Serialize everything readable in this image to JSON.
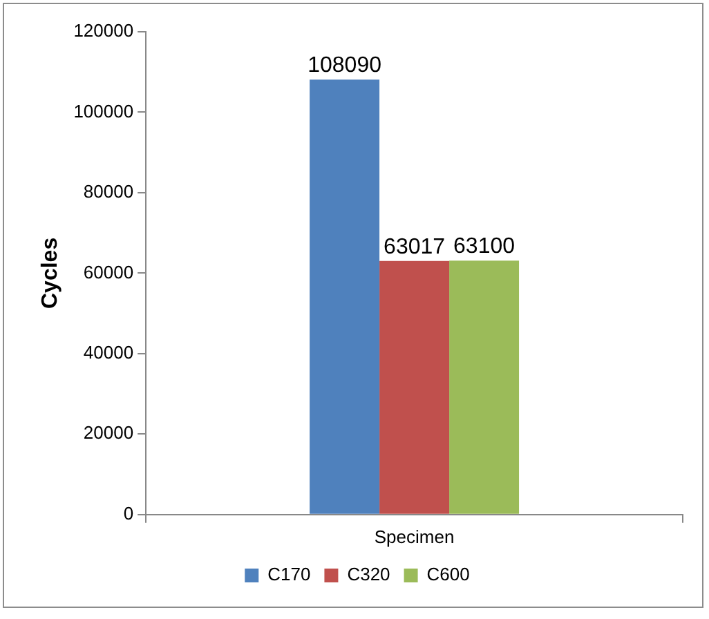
{
  "chart_data": {
    "type": "bar",
    "ylabel": "Cycles",
    "categories": [
      "Specimen"
    ],
    "series": [
      {
        "name": "C170",
        "color": "#4f81bd",
        "values": [
          108090
        ]
      },
      {
        "name": "C320",
        "color": "#c0504d",
        "values": [
          63017
        ]
      },
      {
        "name": "C600",
        "color": "#9bbb59",
        "values": [
          63100
        ]
      }
    ],
    "ylim": [
      0,
      120000
    ],
    "yticks": [
      0,
      20000,
      40000,
      60000,
      80000,
      100000,
      120000
    ],
    "grid": false,
    "legend": "bottom",
    "data_labels": true
  }
}
